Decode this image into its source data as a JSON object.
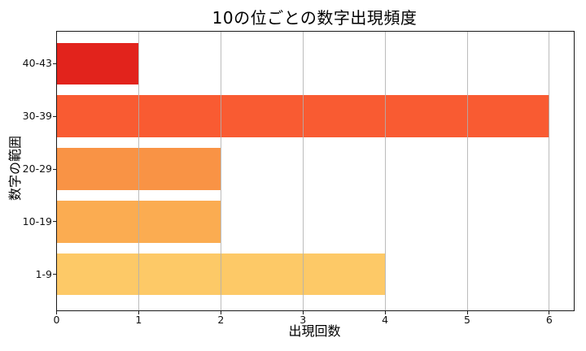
{
  "chart_data": {
    "type": "bar",
    "orientation": "horizontal",
    "title": "10の位ごとの数字出現頻度",
    "xlabel": "出現回数",
    "ylabel": "数字の範囲",
    "categories": [
      "40-43",
      "30-39",
      "20-29",
      "10-19",
      "1-9"
    ],
    "values": [
      1,
      6,
      2,
      2,
      4
    ],
    "series": [
      {
        "name": "出現回数",
        "values": [
          1,
          6,
          2,
          2,
          4
        ]
      }
    ],
    "bar_colors": [
      "#e2231c",
      "#f95b32",
      "#f99345",
      "#fbac51",
      "#fdc967"
    ],
    "xticks": [
      0,
      1,
      2,
      3,
      4,
      5,
      6
    ],
    "xlim": [
      0,
      6.3
    ],
    "grid": true,
    "grid_color": "#b0b0b0",
    "legend": false,
    "frame_color": "#1a1a1a",
    "background": "#ffffff"
  }
}
